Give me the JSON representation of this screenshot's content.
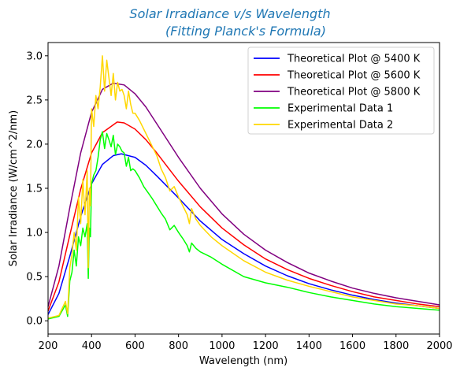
{
  "chart_data": {
    "type": "line",
    "title_line1": "Solar Irradiance v/s Wavelength",
    "title_line2": "(Fitting Planck's Formula)",
    "title_color": "#1f77b4",
    "xlabel": "Wavelength (nm)",
    "ylabel": "Solar Irradiance (W/cm^2/nm)",
    "xlim": [
      200,
      2000
    ],
    "ylim": [
      -0.15,
      3.15
    ],
    "x_ticks": [
      200,
      400,
      600,
      800,
      1000,
      1200,
      1400,
      1600,
      1800,
      2000
    ],
    "y_ticks": [
      0.0,
      0.5,
      1.0,
      1.5,
      2.0,
      2.5,
      3.0
    ],
    "x_tick_labels": [
      "200",
      "400",
      "600",
      "800",
      "1000",
      "1200",
      "1400",
      "1600",
      "1800",
      "2000"
    ],
    "y_tick_labels": [
      "0.0",
      "0.5",
      "1.0",
      "1.5",
      "2.0",
      "2.5",
      "3.0"
    ],
    "legend_position": "top-right",
    "grid": false,
    "series": [
      {
        "name": "Theoretical Plot @ 5400 K",
        "color": "#0000ff",
        "x": [
          200,
          250,
          300,
          350,
          400,
          450,
          500,
          537,
          600,
          650,
          700,
          800,
          900,
          1000,
          1100,
          1200,
          1300,
          1400,
          1500,
          1600,
          1700,
          1800,
          1900,
          2000
        ],
        "y": [
          0.07,
          0.31,
          0.73,
          1.18,
          1.55,
          1.77,
          1.87,
          1.89,
          1.85,
          1.76,
          1.64,
          1.39,
          1.13,
          0.92,
          0.76,
          0.62,
          0.51,
          0.42,
          0.35,
          0.29,
          0.24,
          0.2,
          0.17,
          0.14
        ]
      },
      {
        "name": "Theoretical Plot @ 5600 K",
        "color": "#ff0000",
        "x": [
          200,
          250,
          300,
          350,
          400,
          450,
          518,
          550,
          600,
          650,
          700,
          800,
          900,
          1000,
          1100,
          1200,
          1300,
          1400,
          1500,
          1600,
          1700,
          1800,
          1900,
          2000
        ],
        "y": [
          0.11,
          0.44,
          0.97,
          1.49,
          1.9,
          2.13,
          2.25,
          2.24,
          2.17,
          2.05,
          1.9,
          1.58,
          1.29,
          1.05,
          0.86,
          0.7,
          0.58,
          0.48,
          0.4,
          0.33,
          0.27,
          0.23,
          0.19,
          0.16
        ]
      },
      {
        "name": "Theoretical Plot @ 5800 K",
        "color": "#800080",
        "x": [
          200,
          250,
          300,
          350,
          400,
          450,
          500,
          550,
          600,
          650,
          700,
          800,
          900,
          1000,
          1100,
          1200,
          1300,
          1400,
          1500,
          1600,
          1700,
          1800,
          1900,
          2000
        ],
        "y": [
          0.16,
          0.62,
          1.28,
          1.9,
          2.36,
          2.62,
          2.69,
          2.67,
          2.57,
          2.42,
          2.23,
          1.85,
          1.5,
          1.21,
          0.98,
          0.8,
          0.66,
          0.54,
          0.45,
          0.37,
          0.31,
          0.26,
          0.22,
          0.18
        ]
      },
      {
        "name": "Experimental Data 1",
        "color": "#00ff00",
        "x": [
          200,
          250,
          280,
          290,
          300,
          310,
          320,
          330,
          340,
          350,
          360,
          370,
          380,
          385,
          390,
          395,
          400,
          410,
          420,
          430,
          440,
          450,
          460,
          470,
          480,
          490,
          500,
          510,
          520,
          530,
          540,
          550,
          560,
          570,
          580,
          590,
          600,
          620,
          640,
          660,
          680,
          700,
          720,
          740,
          760,
          780,
          800,
          820,
          840,
          850,
          860,
          880,
          900,
          950,
          1000,
          1100,
          1200,
          1300,
          1400,
          1500,
          1600,
          1700,
          1800,
          1900,
          2000
        ],
        "y": [
          0.02,
          0.05,
          0.18,
          0.05,
          0.45,
          0.55,
          0.8,
          0.62,
          0.95,
          0.85,
          1.05,
          0.95,
          1.1,
          0.48,
          1.05,
          0.95,
          1.55,
          1.65,
          1.7,
          1.85,
          2.05,
          2.14,
          1.95,
          2.12,
          2.05,
          1.97,
          2.1,
          1.88,
          2.0,
          1.97,
          1.92,
          1.9,
          1.75,
          1.85,
          1.7,
          1.72,
          1.7,
          1.62,
          1.52,
          1.45,
          1.38,
          1.3,
          1.22,
          1.15,
          1.03,
          1.08,
          1.0,
          0.93,
          0.85,
          0.78,
          0.88,
          0.82,
          0.78,
          0.72,
          0.64,
          0.5,
          0.43,
          0.38,
          0.32,
          0.27,
          0.23,
          0.19,
          0.16,
          0.14,
          0.12
        ]
      },
      {
        "name": "Experimental Data 2",
        "color": "#ffd700",
        "x": [
          200,
          250,
          280,
          290,
          300,
          310,
          320,
          330,
          340,
          350,
          360,
          370,
          380,
          385,
          390,
          395,
          400,
          410,
          420,
          430,
          440,
          450,
          460,
          470,
          480,
          490,
          500,
          510,
          520,
          530,
          540,
          550,
          560,
          570,
          580,
          590,
          600,
          620,
          640,
          660,
          680,
          700,
          720,
          740,
          760,
          780,
          800,
          820,
          840,
          850,
          860,
          880,
          900,
          950,
          1000,
          1100,
          1200,
          1300,
          1400,
          1500,
          1600,
          1700,
          1800,
          1900,
          2000
        ],
        "y": [
          0.03,
          0.06,
          0.22,
          0.08,
          0.6,
          0.75,
          1.0,
          0.8,
          1.4,
          1.1,
          1.6,
          1.2,
          1.7,
          0.6,
          1.5,
          1.3,
          2.4,
          2.2,
          2.55,
          2.4,
          2.65,
          3.0,
          2.6,
          2.95,
          2.75,
          2.55,
          2.8,
          2.5,
          2.7,
          2.6,
          2.62,
          2.55,
          2.4,
          2.6,
          2.45,
          2.35,
          2.35,
          2.27,
          2.17,
          2.07,
          1.97,
          1.87,
          1.72,
          1.62,
          1.47,
          1.52,
          1.4,
          1.3,
          1.2,
          1.1,
          1.27,
          1.15,
          1.08,
          0.95,
          0.85,
          0.68,
          0.55,
          0.46,
          0.39,
          0.33,
          0.27,
          0.23,
          0.19,
          0.17,
          0.14
        ]
      }
    ]
  }
}
